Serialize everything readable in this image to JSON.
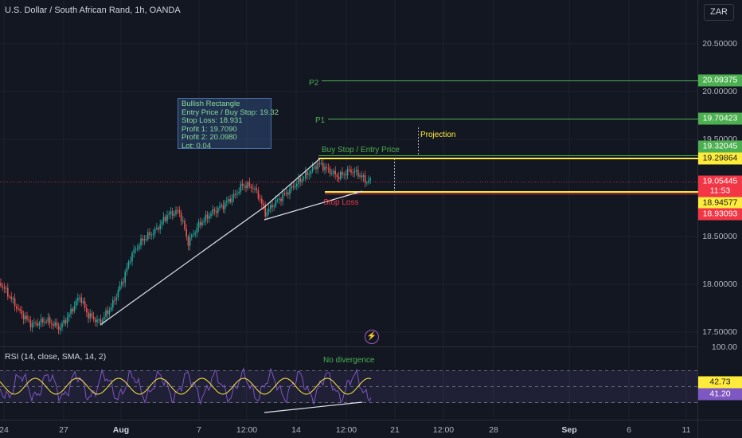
{
  "header": {
    "symbol_title": "U.S. Dollar / South African Rand, 1h, OANDA",
    "currency": "ZAR"
  },
  "price_axis": {
    "ticks": [
      "20.50000",
      "20.00000",
      "19.50000",
      "18.50000",
      "18.00000",
      "17.50000"
    ],
    "tags": [
      {
        "text": "20.09375",
        "bg": "#4caf50",
        "fg": "#ffffff"
      },
      {
        "text": "19.70423",
        "bg": "#4caf50",
        "fg": "#ffffff"
      },
      {
        "text": "19.32045",
        "bg": "#4caf50",
        "fg": "#ffffff"
      },
      {
        "text": "19.29864",
        "bg": "#ffeb3b",
        "fg": "#131722"
      },
      {
        "text": "19.05445",
        "bg": "#f23645",
        "fg": "#ffffff"
      },
      {
        "text": "11:53",
        "bg": "#f23645",
        "fg": "#ffffff"
      },
      {
        "text": "18.94577",
        "bg": "#ffeb3b",
        "fg": "#131722"
      },
      {
        "text": "18.93093",
        "bg": "#f23645",
        "fg": "#ffffff"
      }
    ]
  },
  "annotations": {
    "p2": "P2",
    "p1": "P1",
    "buy_stop": "Buy Stop / Entry Price",
    "projection": "Projection",
    "stop_loss": "Stop Loss",
    "no_divergence": "No divergence"
  },
  "info_box": {
    "lines": [
      "Bullish Rectangle",
      "Entry Price / Buy Stop: 19.32",
      "Stop Loss: 18.931",
      "Profit 1: 19.7090",
      "Profit 2: 20.0980",
      "Lot: 0.04"
    ]
  },
  "rsi": {
    "legend": "RSI (14, close, SMA, 14, 2)",
    "axis_top": "100.00",
    "value_rsi": "42.73",
    "value_sma": "41.20"
  },
  "time_axis": {
    "ticks": [
      "24",
      "27",
      "Aug",
      "7",
      "12:00",
      "14",
      "12:00",
      "21",
      "12:00",
      "28",
      "Sep",
      "6",
      "11"
    ]
  },
  "colors": {
    "background": "#131722",
    "up": "#26a69a",
    "down": "#ef5350",
    "green_level": "#4caf50",
    "yellow_level": "#ffeb3b",
    "red_level": "#f23645",
    "rsi_line": "#7e57c2",
    "rsi_sma": "#ffeb3b"
  },
  "icons": {
    "replay": "lightning-icon"
  }
}
